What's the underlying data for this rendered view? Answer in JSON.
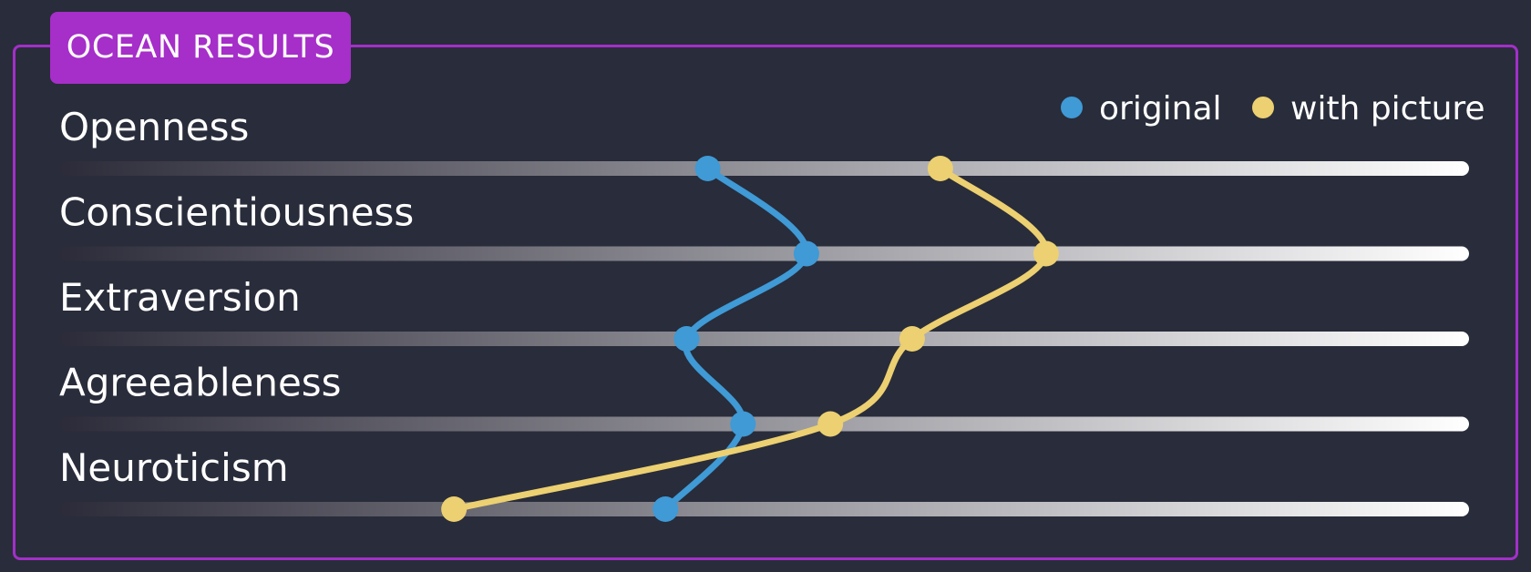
{
  "panel": {
    "title": "OCEAN RESULTS"
  },
  "colors": {
    "background": "#292c3a",
    "panel_border": "#a230c8",
    "title_badge": "#a62ec9",
    "track_start": "#2c2b39",
    "track_end": "#ffffff",
    "series_original": "#3f9ad6",
    "series_with_picture": "#ecd071"
  },
  "chart_data": {
    "type": "line",
    "orientation": "horizontal-tracks",
    "title": "OCEAN RESULTS",
    "categories": [
      "Openness",
      "Conscientiousness",
      "Extraversion",
      "Agreeableness",
      "Neuroticism"
    ],
    "xlim": [
      0,
      1
    ],
    "grid": false,
    "legend_position": "top-right",
    "series": [
      {
        "name": "original",
        "color": "#3f9ad6",
        "values": [
          0.46,
          0.53,
          0.445,
          0.485,
          0.43
        ]
      },
      {
        "name": "with picture",
        "color": "#ecd071",
        "values": [
          0.625,
          0.7,
          0.605,
          0.547,
          0.28
        ]
      }
    ]
  }
}
